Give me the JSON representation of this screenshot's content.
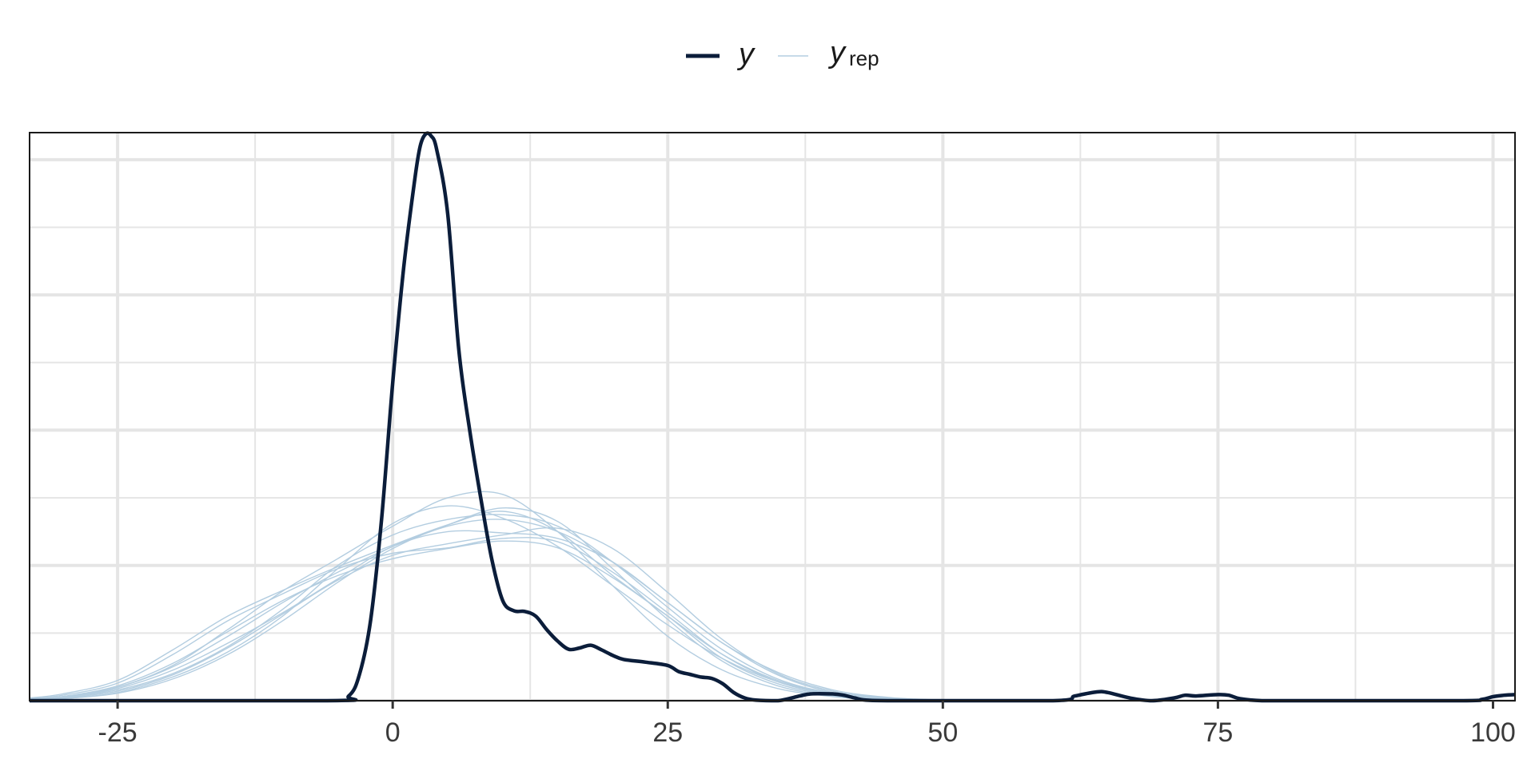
{
  "chart_data": {
    "type": "line",
    "title": "",
    "xlabel": "",
    "ylabel": "",
    "xlim": [
      -33,
      102
    ],
    "ylim": [
      0,
      0.084
    ],
    "grid": true,
    "legend_position": "top-center",
    "x_ticks": [
      -25,
      0,
      25,
      50,
      75,
      100
    ],
    "x_tick_labels": [
      "-25",
      "0",
      "25",
      "50",
      "75",
      "100"
    ],
    "y_ticks": [
      0.0,
      0.01,
      0.02,
      0.03,
      0.04,
      0.05,
      0.06,
      0.07,
      0.08
    ],
    "colors": {
      "y": "#0b1d3a",
      "yrep": "#b3cde0",
      "grid": "#e5e5e5",
      "frame": "#1a1a1a"
    },
    "legend": [
      {
        "key": "y",
        "label": "y",
        "subscript": ""
      },
      {
        "key": "yrep",
        "label": "y",
        "subscript": "rep"
      }
    ],
    "series": [
      {
        "name": "y",
        "x": [
          -33,
          -6,
          -4,
          -3,
          -2,
          -1,
          0,
          1,
          2,
          2.5,
          3,
          3.5,
          4,
          5,
          6,
          7,
          8,
          9,
          10,
          11,
          12,
          13,
          14,
          15,
          16,
          17,
          18,
          19,
          20,
          21,
          23,
          25,
          26,
          27,
          28,
          29,
          30,
          31,
          32,
          33,
          35,
          37,
          38,
          40,
          41,
          42,
          43,
          46,
          60,
          62,
          64,
          65,
          67,
          69,
          71,
          72,
          73,
          75,
          76,
          77,
          79,
          82,
          97,
          99,
          100,
          101,
          102
        ],
        "y": [
          0,
          0,
          0.0007,
          0.004,
          0.012,
          0.027,
          0.047,
          0.064,
          0.077,
          0.082,
          0.0838,
          0.0835,
          0.0815,
          0.072,
          0.052,
          0.04,
          0.03,
          0.021,
          0.0148,
          0.0133,
          0.0132,
          0.0125,
          0.0105,
          0.0088,
          0.0076,
          0.0078,
          0.0082,
          0.0075,
          0.0067,
          0.0061,
          0.0057,
          0.0052,
          0.0043,
          0.0039,
          0.0035,
          0.0033,
          0.0025,
          0.0012,
          0.0004,
          0.0001,
          0,
          0.0007,
          0.001,
          0.001,
          0.0008,
          0.0004,
          0.0001,
          0,
          0,
          0.0007,
          0.0013,
          0.0012,
          0.0004,
          0,
          0.0004,
          0.0008,
          0.0007,
          0.0009,
          0.0008,
          0.0003,
          0,
          0,
          0,
          0.0002,
          0.0006,
          0.0008,
          0.0009
        ]
      },
      {
        "name": "",
        "x": [
          -33,
          -30,
          -25,
          -20,
          -15,
          -10,
          -5,
          0,
          5,
          10,
          15,
          20,
          25,
          30,
          35,
          40,
          45,
          50,
          55
        ],
        "y": [
          0.0004,
          0.001,
          0.003,
          0.0075,
          0.0125,
          0.0163,
          0.0198,
          0.023,
          0.026,
          0.028,
          0.025,
          0.0185,
          0.0125,
          0.0062,
          0.0025,
          0.0008,
          0.0002,
          0.0001,
          0
        ]
      },
      {
        "name": "",
        "x": [
          -33,
          -30,
          -25,
          -20,
          -15,
          -10,
          -5,
          0,
          5,
          10,
          15,
          20,
          25,
          30,
          35,
          40,
          45,
          50,
          55
        ],
        "y": [
          0.0002,
          0.0006,
          0.002,
          0.0052,
          0.0105,
          0.0162,
          0.021,
          0.0258,
          0.03,
          0.0305,
          0.025,
          0.017,
          0.0095,
          0.0045,
          0.0018,
          0.0006,
          0.0001,
          0,
          0
        ]
      },
      {
        "name": "",
        "x": [
          -33,
          -30,
          -25,
          -20,
          -15,
          -10,
          -5,
          0,
          5,
          10,
          15,
          20,
          25,
          30,
          35,
          40,
          45,
          50,
          55
        ],
        "y": [
          0.0002,
          0.0005,
          0.0018,
          0.0045,
          0.0085,
          0.013,
          0.018,
          0.0228,
          0.025,
          0.0248,
          0.024,
          0.0205,
          0.0145,
          0.0085,
          0.0038,
          0.0012,
          0.0003,
          0.0001,
          0
        ]
      },
      {
        "name": "",
        "x": [
          -33,
          -30,
          -25,
          -20,
          -15,
          -10,
          -5,
          0,
          5,
          10,
          15,
          20,
          25,
          30,
          35,
          40,
          45,
          50,
          55
        ],
        "y": [
          0.0001,
          0.0003,
          0.0012,
          0.0035,
          0.0072,
          0.0125,
          0.0195,
          0.0262,
          0.0288,
          0.027,
          0.0228,
          0.017,
          0.0112,
          0.0062,
          0.0028,
          0.001,
          0.0003,
          0.0001,
          0
        ]
      },
      {
        "name": "",
        "x": [
          -33,
          -30,
          -25,
          -20,
          -15,
          -10,
          -5,
          0,
          5,
          10,
          15,
          20,
          25,
          30,
          35,
          40,
          45,
          50,
          55
        ],
        "y": [
          0.0003,
          0.0008,
          0.0026,
          0.0068,
          0.0118,
          0.0158,
          0.0195,
          0.0218,
          0.0226,
          0.024,
          0.0235,
          0.019,
          0.013,
          0.0068,
          0.0028,
          0.0009,
          0.0002,
          0.0001,
          0
        ]
      },
      {
        "name": "",
        "x": [
          -33,
          -30,
          -25,
          -20,
          -15,
          -10,
          -5,
          0,
          5,
          10,
          15,
          20,
          25,
          30,
          35,
          40,
          45,
          50,
          55
        ],
        "y": [
          0.0002,
          0.0005,
          0.0016,
          0.004,
          0.008,
          0.0135,
          0.02,
          0.0245,
          0.0268,
          0.0275,
          0.0258,
          0.0205,
          0.0138,
          0.0075,
          0.0032,
          0.0011,
          0.0003,
          0.0001,
          0
        ]
      },
      {
        "name": "",
        "x": [
          -33,
          -30,
          -25,
          -20,
          -15,
          -10,
          -5,
          0,
          5,
          10,
          15,
          20,
          25,
          30,
          35,
          40,
          45,
          50,
          55
        ],
        "y": [
          0.0001,
          0.0004,
          0.0014,
          0.0038,
          0.0078,
          0.0128,
          0.0178,
          0.0215,
          0.0232,
          0.0245,
          0.0255,
          0.0225,
          0.016,
          0.009,
          0.004,
          0.0014,
          0.0004,
          0.0001,
          0
        ]
      },
      {
        "name": "",
        "x": [
          -33,
          -30,
          -25,
          -20,
          -15,
          -10,
          -5,
          0,
          5,
          10,
          15,
          20,
          25,
          30,
          35,
          40,
          45,
          50,
          55
        ],
        "y": [
          0.0002,
          0.0006,
          0.002,
          0.005,
          0.0095,
          0.0145,
          0.019,
          0.0228,
          0.026,
          0.0285,
          0.0265,
          0.0195,
          0.012,
          0.0058,
          0.0022,
          0.0007,
          0.0002,
          0,
          0
        ]
      },
      {
        "name": "",
        "x": [
          -33,
          -30,
          -25,
          -20,
          -15,
          -10,
          -5,
          0,
          5,
          10,
          15,
          20,
          25,
          30,
          35,
          40,
          45,
          50,
          55
        ],
        "y": [
          0.0002,
          0.0006,
          0.0022,
          0.0055,
          0.0102,
          0.0148,
          0.0185,
          0.021,
          0.0225,
          0.0236,
          0.0226,
          0.0182,
          0.0125,
          0.0068,
          0.003,
          0.0011,
          0.0003,
          0.0001,
          0
        ]
      },
      {
        "name": "",
        "x": [
          -33,
          -30,
          -25,
          -20,
          -15,
          -10,
          -5,
          0,
          5,
          10,
          15,
          20,
          25,
          30,
          35,
          40,
          45,
          50,
          55
        ],
        "y": [
          0.0001,
          0.0003,
          0.0011,
          0.0032,
          0.0068,
          0.0118,
          0.0175,
          0.0225,
          0.0258,
          0.0268,
          0.025,
          0.0205,
          0.0145,
          0.0085,
          0.0042,
          0.0016,
          0.0005,
          0.0001,
          0
        ]
      }
    ]
  }
}
